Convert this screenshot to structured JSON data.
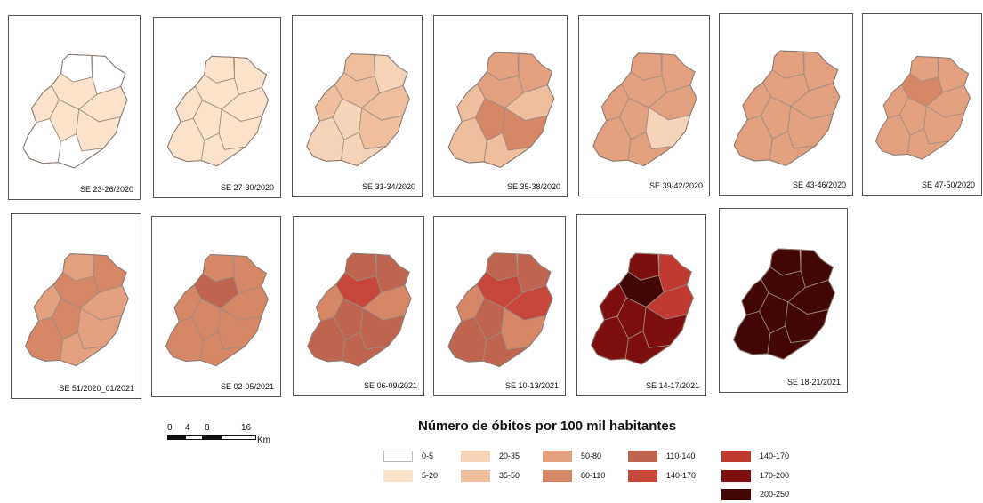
{
  "figure": {
    "legend_title": "Número de óbitos por 100 mil habitantes",
    "scale": {
      "ticks": [
        "0",
        "4",
        "8",
        "16"
      ],
      "unit": "Km"
    },
    "legend": [
      {
        "label": "0-5",
        "color": "#ffffff"
      },
      {
        "label": "5-20",
        "color": "#fbe3cb"
      },
      {
        "label": "20-35",
        "color": "#f6d4b7"
      },
      {
        "label": "35-50",
        "color": "#efbf9d"
      },
      {
        "label": "50-80",
        "color": "#e2a07e"
      },
      {
        "label": "80-110",
        "color": "#d68766"
      },
      {
        "label": "110-140",
        "color": "#bf654f"
      },
      {
        "label": "140-170",
        "color": "#c7483b"
      },
      {
        "label": "140-170",
        "color": "#c03a31"
      },
      {
        "label": "170-200",
        "color": "#7e0f0f"
      },
      {
        "label": "200-250",
        "color": "#420606"
      }
    ]
  },
  "panels": [
    {
      "label": "SE 23-26/2020",
      "colors": [
        "#ffffff",
        "#fbe3cb",
        "#ffffff",
        "#fbe3cb",
        "#fbe3cb",
        "#fbe3cb",
        "#fbe3cb",
        "#ffffff",
        "#ffffff"
      ]
    },
    {
      "label": "SE 27-30/2020",
      "colors": [
        "#fbe3cb",
        "#fbe3cb",
        "#fbe3cb",
        "#fbe3cb",
        "#fbe3cb",
        "#fbe3cb",
        "#fbe3cb",
        "#fbe3cb",
        "#fbe3cb"
      ]
    },
    {
      "label": "SE 31-34/2020",
      "colors": [
        "#efbf9d",
        "#efbf9d",
        "#f6d4b7",
        "#efbf9d",
        "#f6d4b7",
        "#efbf9d",
        "#efbf9d",
        "#f6d4b7",
        "#f6d4b7"
      ]
    },
    {
      "label": "SE 35-38/2020",
      "colors": [
        "#e2a07e",
        "#e2a07e",
        "#e2a07e",
        "#efbf9d",
        "#d68766",
        "#efbf9d",
        "#d68766",
        "#efbf9d",
        "#efbf9d"
      ]
    },
    {
      "label": "SE 39-42/2020",
      "colors": [
        "#e2a07e",
        "#e2a07e",
        "#e2a07e",
        "#e2a07e",
        "#e2a07e",
        "#e2a07e",
        "#f6d4b7",
        "#e2a07e",
        "#e2a07e"
      ]
    },
    {
      "label": "SE 43-46/2020",
      "colors": [
        "#e2a07e",
        "#e2a07e",
        "#e2a07e",
        "#e2a07e",
        "#e2a07e",
        "#e2a07e",
        "#e2a07e",
        "#e2a07e",
        "#e2a07e"
      ]
    },
    {
      "label": "SE 47-50/2020",
      "colors": [
        "#e2a07e",
        "#d68766",
        "#e2a07e",
        "#e2a07e",
        "#e2a07e",
        "#e2a07e",
        "#e2a07e",
        "#e2a07e",
        "#e2a07e"
      ]
    },
    {
      "label": "SE 51/2020_01/2021",
      "colors": [
        "#e2a07e",
        "#d68766",
        "#d68766",
        "#e2a07e",
        "#d68766",
        "#e2a07e",
        "#e2a07e",
        "#d68766",
        "#e2a07e"
      ]
    },
    {
      "label": "SE 02-05/2021",
      "colors": [
        "#d68766",
        "#bf654f",
        "#d68766",
        "#d68766",
        "#d68766",
        "#d68766",
        "#d68766",
        "#d68766",
        "#d68766"
      ]
    },
    {
      "label": "SE 06-09/2021",
      "colors": [
        "#bf654f",
        "#c7483b",
        "#bf654f",
        "#d68766",
        "#bf654f",
        "#d68766",
        "#bf654f",
        "#bf654f",
        "#bf654f"
      ]
    },
    {
      "label": "SE 10-13/2021",
      "colors": [
        "#bf654f",
        "#c7483b",
        "#bf654f",
        "#d68766",
        "#bf654f",
        "#c7483b",
        "#d68766",
        "#bf654f",
        "#bf654f"
      ]
    },
    {
      "label": "SE 14-17/2021",
      "colors": [
        "#7e0f0f",
        "#420606",
        "#c03a31",
        "#7e0f0f",
        "#7e0f0f",
        "#c03a31",
        "#7e0f0f",
        "#7e0f0f",
        "#7e0f0f"
      ]
    },
    {
      "label": "SE 18-21/2021",
      "colors": [
        "#420606",
        "#420606",
        "#420606",
        "#420606",
        "#420606",
        "#420606",
        "#420606",
        "#420606",
        "#420606"
      ]
    }
  ]
}
